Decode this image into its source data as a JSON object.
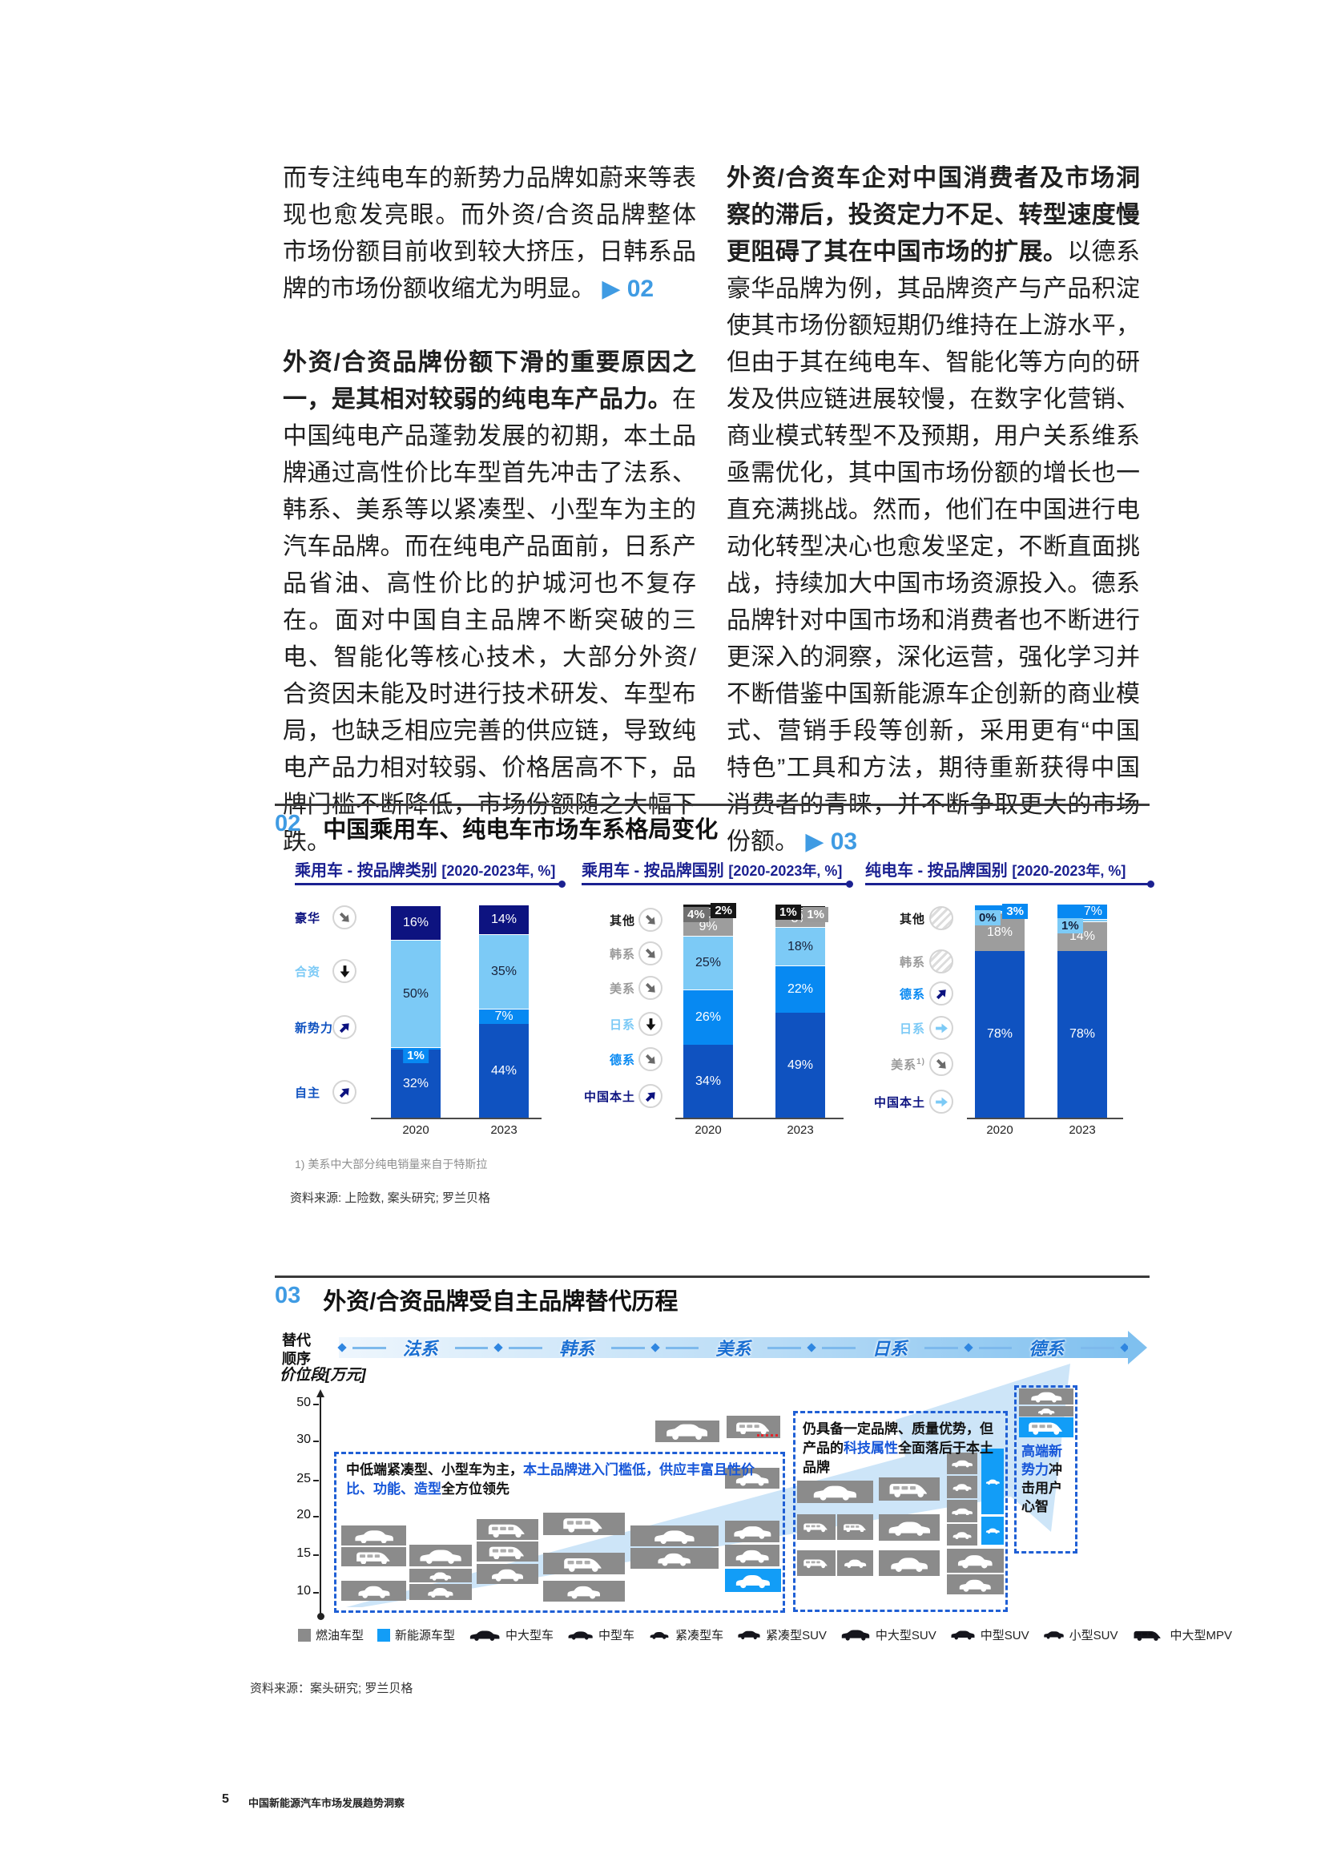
{
  "colors": {
    "accent_blue": "#3f9be3",
    "navy_title": "#1b2191",
    "bar_navy": "#0d1380",
    "bar_blue": "#0f52c0",
    "bar_bright": "#0789f2",
    "bar_light": "#7ccaf6",
    "seg_gray": "#9d9d9d",
    "seg_dark_gray": "#6f6f6f",
    "seg_black": "#161616",
    "tile_gray": "#8b8b8b",
    "ev_blue": "#129df7",
    "dash_blue": "#1f5fd5",
    "callout_blue": "#1656d9"
  },
  "intro": {
    "left": {
      "p1": "而专注纯电车的新势力品牌如蔚来等表现也愈发亮眼。而外资/合资品牌整体市场份额目前收到较大挤压，日韩系品牌的市场份额收缩尤为明显。",
      "ref1": "▶ 02",
      "p2_bold": "外资/合资品牌份额下滑的重要原因之一，是其相对较弱的纯电车产品力。",
      "p2": "在中国纯电产品蓬勃发展的初期，本土品牌通过高性价比车型首先冲击了法系、韩系、美系等以紧凑型、小型车为主的汽车品牌。而在纯电产品面前，日系产品省油、高性价比的护城河也不复存在。面对中国自主品牌不断突破的三电、智能化等核心技术，大部分外资/合资因未能及时进行技术研发、车型布局，也缺乏相应完善的供应链，导致纯电产品力相对较弱、价格居高不下，品牌门槛不断降低，市场份额随之大幅下跌。"
    },
    "right": {
      "p1_bold": "外资/合资车企对中国消费者及市场洞察的滞后，投资定力不足、转型速度慢更阻碍了其在中国市场的扩展。",
      "p1": "以德系豪华品牌为例，其品牌资产与产品积淀使其市场份额短期仍维持在上游水平，但由于其在纯电车、智能化等方向的研发及供应链进展较慢，在数字化营销、商业模式转型不及预期，用户关系维系亟需优化，其中国市场份额的增长也一直充满挑战。然而，他们在中国进行电动化转型决心也愈发坚定，不断直面挑战，持续加大中国市场资源投入。德系品牌针对中国市场和消费者也不断进行更深入的洞察，深化运营，强化学习并不断借鉴中国新能源车企创新的商业模式、营销手段等创新，采用更有“中国特色”工具和方法，期待重新获得中国消费者的青睐，并不断争取更大的市场份额。",
      "ref1": "▶ 03"
    }
  },
  "sec02": {
    "num": "02",
    "title": "中国乘用车、纯电车市场车系格局变化",
    "years": [
      "2020",
      "2023"
    ],
    "footnote": "1) 美系中大部分纯电销量来自于特斯拉",
    "source": "资料来源: 上险数, 案头研究; 罗兰贝格",
    "charts": [
      {
        "title": "乘用车 - 按品牌类别",
        "unit": "[2020-2023年, %]",
        "rows": [
          {
            "label": "豪华",
            "lc": "#0d1380",
            "seg": "#0d1380",
            "arrow": {
              "dir": "dr",
              "color": "#6a6a6a"
            },
            "y20": {
              "v": 16,
              "m": "in"
            },
            "y23": {
              "v": 14,
              "m": "in"
            }
          },
          {
            "label": "合资",
            "lc": "#7ccaf6",
            "seg": "#7ccaf6",
            "arrow": {
              "dir": "d",
              "color": "#111111"
            },
            "y20": {
              "v": 50,
              "m": "ind"
            },
            "y23": {
              "v": 35,
              "m": "ind"
            }
          },
          {
            "label": "新势力",
            "lc": "#0f52c0",
            "seg": "#0789f2",
            "arrow": {
              "dir": "ur",
              "color": "#0d1380"
            },
            "y20": {
              "v": 1,
              "m": "bb"
            },
            "y23": {
              "v": 7,
              "m": "in"
            }
          },
          {
            "label": "自主",
            "lc": "#0f52c0",
            "seg": "#0f52c0",
            "arrow": {
              "dir": "ur",
              "color": "#0d1380"
            },
            "y20": {
              "v": 32,
              "m": "in"
            },
            "y23": {
              "v": 44,
              "m": "in"
            }
          }
        ],
        "stack": [
          3,
          2,
          1,
          0
        ]
      },
      {
        "title": "乘用车 - 按品牌国别",
        "unit": "[2020-2023年, %]",
        "rows": [
          {
            "label": "其他",
            "lc": "#1a1a1a",
            "seg": "#161616",
            "arrow": {
              "dir": "dr",
              "color": "#6a6a6a"
            },
            "y20": {
              "v": 2,
              "m": "br"
            },
            "y23": {
              "v": 1,
              "m": "bl"
            }
          },
          {
            "label": "韩系",
            "lc": "#9a9a9a",
            "seg": "#6f6f6f",
            "arrow": {
              "dir": "dr",
              "color": "#6a6a6a"
            },
            "y20": {
              "v": 4,
              "m": "bl"
            },
            "y23": {
              "v": 1,
              "m": "br",
              "bg": "#9a9a9a"
            }
          },
          {
            "label": "美系",
            "lc": "#9a9a9a",
            "seg": "#9d9d9d",
            "arrow": {
              "dir": "dr",
              "color": "#6a6a6a"
            },
            "y20": {
              "v": 9,
              "m": "in"
            },
            "y23": {
              "v": 8,
              "m": "in"
            }
          },
          {
            "label": "日系",
            "lc": "#7ccaf6",
            "seg": "#7ccaf6",
            "arrow": {
              "dir": "d",
              "color": "#111111"
            },
            "y20": {
              "v": 25,
              "m": "ind"
            },
            "y23": {
              "v": 18,
              "m": "ind"
            }
          },
          {
            "label": "德系",
            "lc": "#0789f2",
            "seg": "#0789f2",
            "arrow": {
              "dir": "dr",
              "color": "#6a6a6a"
            },
            "y20": {
              "v": 26,
              "m": "in"
            },
            "y23": {
              "v": 22,
              "m": "in"
            }
          },
          {
            "label": "中国本土",
            "lc": "#0d1380",
            "seg": "#0f52c0",
            "arrow": {
              "dir": "ur",
              "color": "#0d1380"
            },
            "y20": {
              "v": 34,
              "m": "in"
            },
            "y23": {
              "v": 49,
              "m": "in"
            }
          }
        ],
        "stack": [
          5,
          4,
          3,
          2,
          1,
          0
        ]
      },
      {
        "title": "纯电车 - 按品牌国别",
        "unit": "[2020-2023年, %]",
        "rows": [
          {
            "label": "其他",
            "lc": "#1a1a1a",
            "hatch": true,
            "y20": {
              "v": 0,
              "m": "none"
            },
            "y23": {
              "v": 0,
              "m": "none"
            }
          },
          {
            "label": "韩系",
            "lc": "#9a9a9a",
            "hatch": true,
            "y20": {
              "v": 0,
              "m": "none"
            },
            "y23": {
              "v": 0,
              "m": "none"
            }
          },
          {
            "label": "德系",
            "lc": "#0789f2",
            "seg": "#0789f2",
            "arrow": {
              "dir": "ur",
              "color": "#0d1380"
            },
            "y20": {
              "v": 3,
              "m": "br"
            },
            "y23": {
              "v": 7,
              "m": "ir"
            }
          },
          {
            "label": "日系",
            "lc": "#7ccaf6",
            "seg": "#7ccaf6",
            "arrow": {
              "dir": "r",
              "color": "#7ccaf6"
            },
            "y20": {
              "v": 0,
              "m": "bl",
              "bg": "#7ccaf6",
              "fg": "#14203c",
              "sliver": true
            },
            "y23": {
              "v": 1,
              "m": "bl",
              "bg": "#7ccaf6",
              "fg": "#14203c"
            }
          },
          {
            "label": "美系",
            "sup": "1)",
            "lc": "#9a9a9a",
            "seg": "#9d9d9d",
            "arrow": {
              "dir": "dr",
              "color": "#6a6a6a"
            },
            "y20": {
              "v": 18,
              "m": "in"
            },
            "y23": {
              "v": 14,
              "m": "in"
            }
          },
          {
            "label": "中国本土",
            "lc": "#0d1380",
            "seg": "#0f52c0",
            "arrow": {
              "dir": "r",
              "color": "#7ccaf6"
            },
            "y20": {
              "v": 78,
              "m": "in"
            },
            "y23": {
              "v": 78,
              "m": "in"
            }
          }
        ],
        "stack": [
          5,
          4,
          3,
          2
        ]
      }
    ]
  },
  "sec03": {
    "num": "03",
    "title": "外资/合资品牌受自主品牌替代历程",
    "order_label_1": "替代",
    "order_label_2": "顺序",
    "axis_label": "价位段[万元]",
    "brands": [
      "法系",
      "韩系",
      "美系",
      "日系",
      "德系"
    ],
    "yticks": [
      "50",
      "30",
      "25",
      "20",
      "15",
      "10"
    ],
    "callout1": {
      "t1": "中低端紧凑型、小型车为主，",
      "blue": "本土品牌进入门槛低，供应丰富且性价比、功能、造型",
      "t2": "全方位领先"
    },
    "callout2": {
      "t1": "仍具备一定品牌、质量优势，但产品的",
      "blue": "科技属性",
      "t2": "全面落后于本土品牌"
    },
    "callout3": {
      "blue": "高端新势力",
      "t": "冲击用户心智"
    },
    "tiles": [
      [
        818,
        1773,
        80,
        27,
        "g",
        "suv"
      ],
      [
        907,
        1767,
        67,
        28,
        "g",
        "mpv",
        "red"
      ],
      [
        426,
        1904,
        81,
        25,
        "g",
        "sedan"
      ],
      [
        426,
        1931,
        81,
        24,
        "g",
        "mpv"
      ],
      [
        426,
        1973,
        81,
        25,
        "g",
        "compact"
      ],
      [
        511,
        1928,
        78,
        27,
        "g",
        "sedan"
      ],
      [
        511,
        1958,
        78,
        17,
        "g",
        "compact"
      ],
      [
        511,
        1977,
        78,
        20,
        "g",
        "compact"
      ],
      [
        595,
        1896,
        77,
        26,
        "g",
        "mpv"
      ],
      [
        595,
        1924,
        77,
        25,
        "g",
        "mpv"
      ],
      [
        595,
        1952,
        77,
        25,
        "g",
        "compact"
      ],
      [
        678,
        1888,
        102,
        28,
        "g",
        "mpv"
      ],
      [
        678,
        1938,
        102,
        27,
        "g",
        "mpv"
      ],
      [
        678,
        1973,
        102,
        26,
        "g",
        "compact"
      ],
      [
        787,
        1904,
        110,
        26,
        "g",
        "sedan"
      ],
      [
        787,
        1932,
        110,
        26,
        "g",
        "compact"
      ],
      [
        905,
        1832,
        68,
        26,
        "g",
        "compact"
      ],
      [
        905,
        1898,
        68,
        27,
        "g",
        "sedan"
      ],
      [
        905,
        1928,
        68,
        27,
        "g",
        "compact"
      ],
      [
        905,
        1958,
        70,
        29,
        "b",
        "compact"
      ],
      [
        995,
        1848,
        95,
        28,
        "g",
        "sedan"
      ],
      [
        1097,
        1844,
        76,
        29,
        "g",
        "mpv"
      ],
      [
        995,
        1890,
        48,
        32,
        "g",
        "mpv"
      ],
      [
        1045,
        1890,
        45,
        32,
        "g",
        "mpv"
      ],
      [
        1097,
        1890,
        76,
        33,
        "g",
        "sedan"
      ],
      [
        995,
        1935,
        48,
        32,
        "g",
        "mpv"
      ],
      [
        1045,
        1935,
        45,
        32,
        "g",
        "compact"
      ],
      [
        1097,
        1935,
        76,
        32,
        "g",
        "compact"
      ],
      [
        1182,
        1813,
        38,
        27,
        "g",
        "sedan"
      ],
      [
        1182,
        1842,
        38,
        28,
        "g",
        "compact"
      ],
      [
        1182,
        1872,
        38,
        28,
        "g",
        "sedan"
      ],
      [
        1182,
        1902,
        38,
        27,
        "g",
        "compact"
      ],
      [
        1182,
        1933,
        71,
        30,
        "g",
        "compact"
      ],
      [
        1182,
        1965,
        71,
        25,
        "g",
        "compact"
      ],
      [
        1225,
        1808,
        28,
        82,
        "b",
        "compact"
      ],
      [
        1225,
        1893,
        28,
        35,
        "b",
        "compact"
      ],
      [
        1272,
        1733,
        68,
        20,
        "g",
        "sedan"
      ],
      [
        1272,
        1755,
        68,
        13,
        "g",
        "compact"
      ],
      [
        1272,
        1769,
        68,
        25,
        "b",
        "mpv"
      ]
    ],
    "legend": [
      {
        "swatch": "#8b8b8b",
        "label": "燃油车型"
      },
      {
        "swatch": "#129df7",
        "label": "新能源车型"
      },
      {
        "icon": "sedan",
        "w": 40,
        "label": "中大型车"
      },
      {
        "icon": "sedan",
        "w": 33,
        "label": "中型车"
      },
      {
        "icon": "compact",
        "w": 28,
        "label": "紧凑型车"
      },
      {
        "icon": "suv",
        "w": 30,
        "label": "紧凑型SUV"
      },
      {
        "icon": "suv",
        "w": 38,
        "label": "中大型SUV"
      },
      {
        "icon": "suv",
        "w": 32,
        "label": "中型SUV"
      },
      {
        "icon": "suv",
        "w": 27,
        "label": "小型SUV"
      },
      {
        "icon": "mpv",
        "w": 42,
        "label": "中大型MPV"
      }
    ],
    "source": "资料来源：案头研究; 罗兰贝格"
  },
  "footer": {
    "page_num": "5",
    "title": "中国新能源汽车市场发展趋势洞察"
  }
}
